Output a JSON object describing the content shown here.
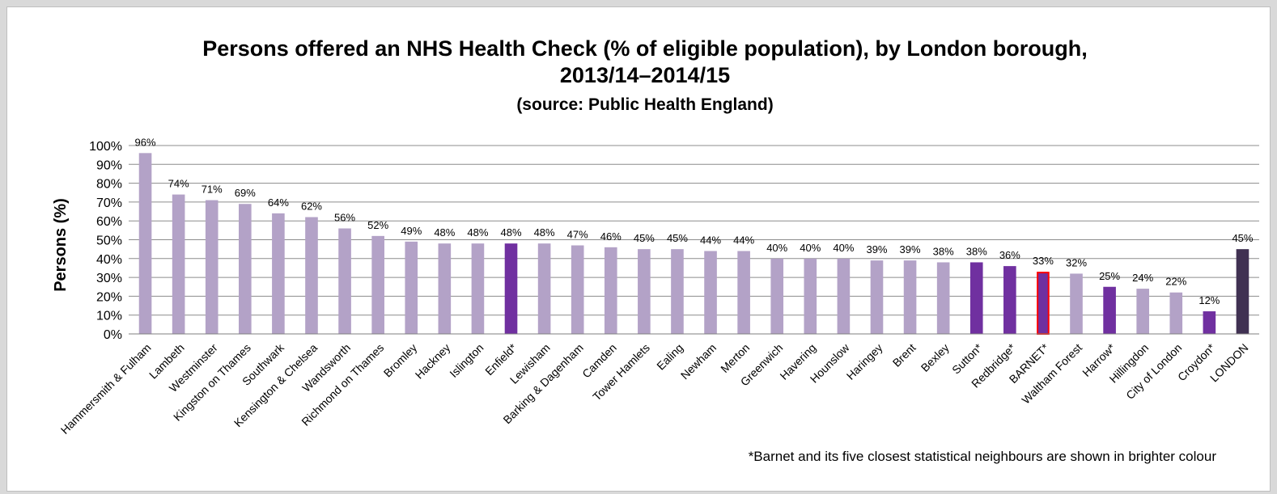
{
  "chart_data": {
    "type": "bar",
    "title_line1": "Persons offered an NHS Health Check (% of eligible population), by London borough,",
    "title_line2": "2013/14–2014/15",
    "subtitle": "(source: Public Health England)",
    "ylabel": "Persons (%)",
    "xlabel": "",
    "ylim": [
      0,
      100
    ],
    "yticks": [
      0,
      10,
      20,
      30,
      40,
      50,
      60,
      70,
      80,
      90,
      100
    ],
    "ytick_labels": [
      "0%",
      "10%",
      "20%",
      "30%",
      "40%",
      "50%",
      "60%",
      "70%",
      "80%",
      "90%",
      "100%"
    ],
    "grid": true,
    "categories": [
      "Hammersmith & Fulham",
      "Lambeth",
      "Westminster",
      "Kingston on Thames",
      "Southwark",
      "Kensington & Chelsea",
      "Wandsworth",
      "Richmond on Thames",
      "Bromley",
      "Hackney",
      "Islington",
      "Enfield*",
      "Lewisham",
      "Barking & Dagenham",
      "Camden",
      "Tower Hamlets",
      "Ealing",
      "Newham",
      "Merton",
      "Greenwich",
      "Havering",
      "Hounslow",
      "Haringey",
      "Brent",
      "Bexley",
      "Sutton*",
      "Redbridge*",
      "BARNET*",
      "Waltham Forest",
      "Harrow*",
      "Hillingdon",
      "City of London",
      "Croydon*",
      "LONDON"
    ],
    "values": [
      96,
      74,
      71,
      69,
      64,
      62,
      56,
      52,
      49,
      48,
      48,
      48,
      48,
      47,
      46,
      45,
      45,
      44,
      44,
      40,
      40,
      40,
      39,
      39,
      38,
      38,
      36,
      33,
      32,
      25,
      24,
      22,
      12,
      45
    ],
    "value_labels": [
      "96%",
      "74%",
      "71%",
      "69%",
      "64%",
      "62%",
      "56%",
      "52%",
      "49%",
      "48%",
      "48%",
      "48%",
      "48%",
      "47%",
      "46%",
      "45%",
      "45%",
      "44%",
      "44%",
      "40%",
      "40%",
      "40%",
      "39%",
      "39%",
      "38%",
      "38%",
      "36%",
      "33%",
      "32%",
      "25%",
      "24%",
      "22%",
      "12%",
      "45%"
    ],
    "bar_groups": [
      "other",
      "other",
      "other",
      "other",
      "other",
      "other",
      "other",
      "other",
      "other",
      "other",
      "other",
      "neighbour",
      "other",
      "other",
      "other",
      "other",
      "other",
      "other",
      "other",
      "other",
      "other",
      "other",
      "other",
      "other",
      "other",
      "neighbour",
      "neighbour",
      "barnet",
      "other",
      "neighbour",
      "other",
      "other",
      "neighbour",
      "london"
    ],
    "colors": {
      "other": "#b3a2c7",
      "neighbour": "#7030a0",
      "barnet": "#7030a0",
      "barnet_outline": "#ff0000",
      "london": "#403152"
    },
    "footnote": "*Barnet and its five closest statistical neighbours are shown in brighter colour"
  }
}
